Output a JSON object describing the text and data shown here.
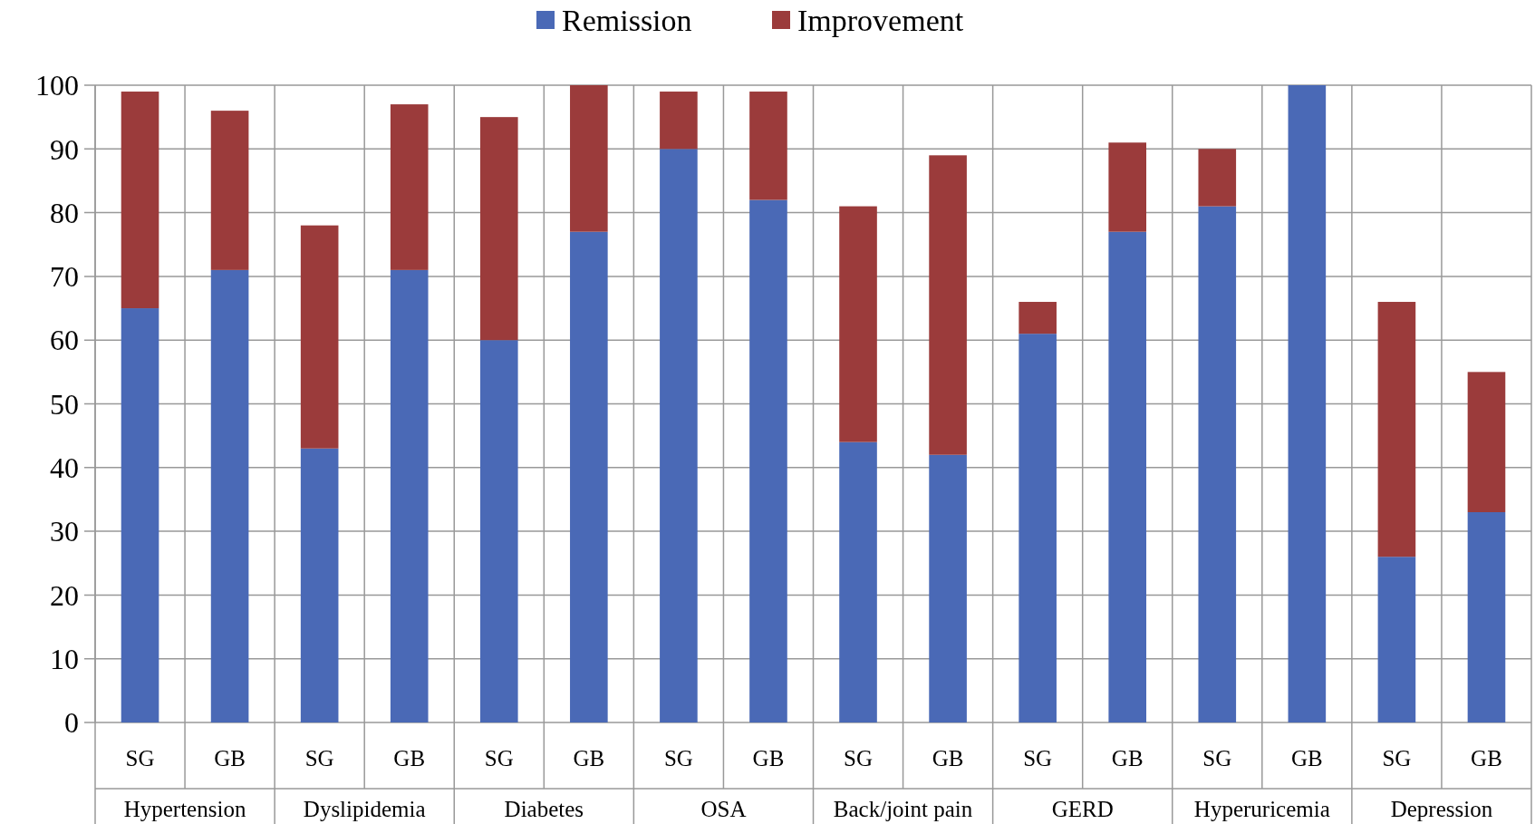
{
  "chart_data": {
    "type": "bar",
    "stacked": true,
    "categories": [
      "SG",
      "GB",
      "SG",
      "GB",
      "SG",
      "GB",
      "SG",
      "GB",
      "SG",
      "GB",
      "SG",
      "GB",
      "SG",
      "GB",
      "SG",
      "GB"
    ],
    "series": [
      {
        "name": "Remission",
        "color": "#4a69b6",
        "values": [
          65,
          71,
          43,
          71,
          60,
          77,
          90,
          82,
          44,
          42,
          61,
          77,
          81,
          100,
          26,
          33
        ]
      },
      {
        "name": "Improvement",
        "color": "#9b3b3b",
        "values": [
          34,
          25,
          35,
          26,
          35,
          23,
          9,
          17,
          37,
          47,
          5,
          14,
          9,
          0,
          40,
          22
        ]
      }
    ],
    "annotations": [
      "Hypertension",
      "Dyslipidemia",
      "Diabetes",
      "OSA",
      "Back/joint pain",
      "GERD",
      "Hyperuricemia",
      "Depression"
    ],
    "ylim": [
      0,
      100
    ],
    "yticks": [
      0,
      10,
      20,
      30,
      40,
      50,
      60,
      70,
      80,
      90,
      100
    ],
    "grid": true,
    "legend": "top"
  }
}
